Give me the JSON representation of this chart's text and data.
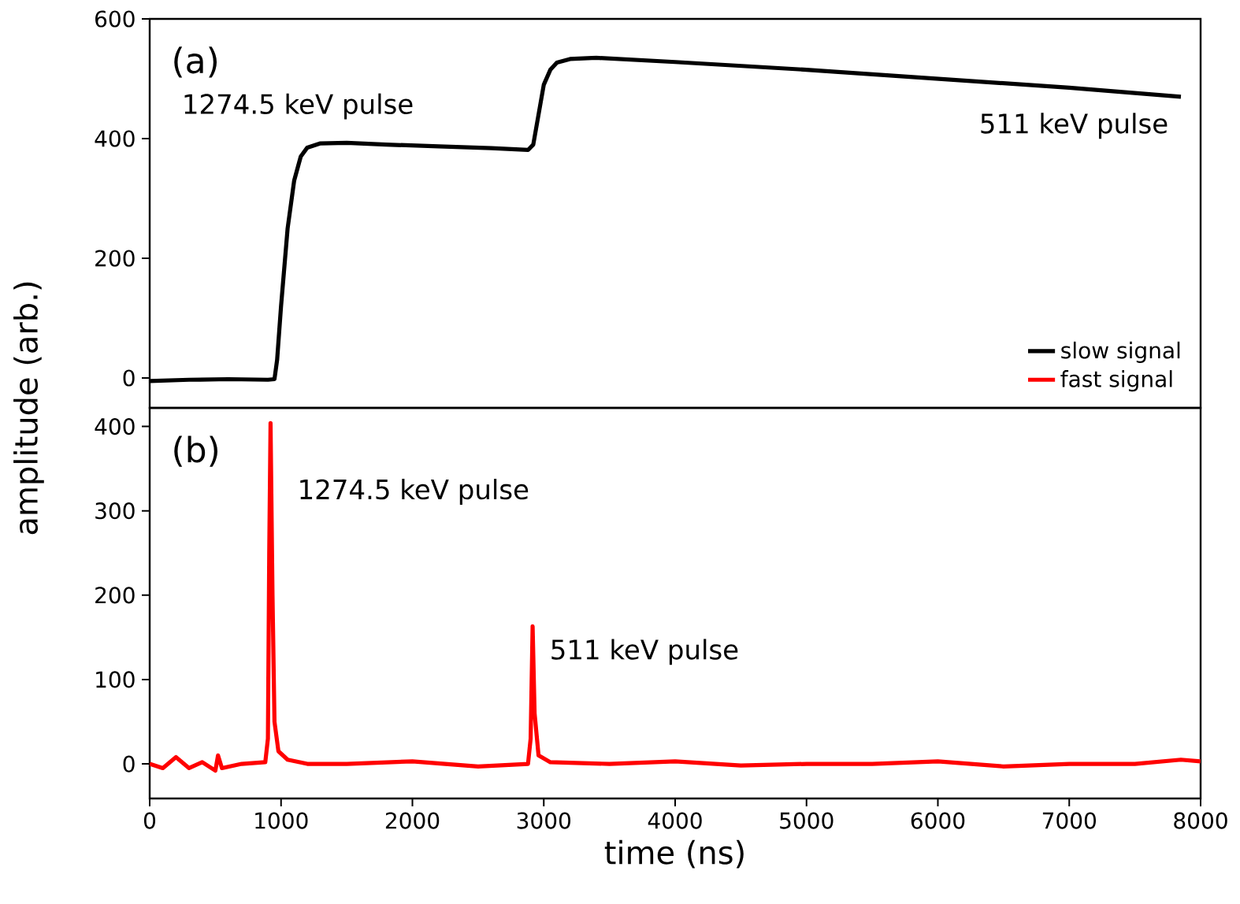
{
  "chart_data": [
    {
      "type": "line",
      "ylabel": "amplitude (arb.)",
      "xlim": [
        0,
        8000
      ],
      "ylim": [
        -50,
        600
      ],
      "yticks": [
        0,
        200,
        400,
        600
      ],
      "tick_labels": "y",
      "legend": "bottom right",
      "grid": false,
      "marker": "none",
      "line_style": "solid",
      "annotations": [
        "(a)",
        "1274.5 keV pulse",
        "511 keV pulse"
      ],
      "series": [
        {
          "name": "slow signal",
          "color": "#000000",
          "x": [
            0,
            300,
            600,
            900,
            950,
            970,
            1000,
            1050,
            1100,
            1150,
            1200,
            1300,
            1500,
            1800,
            2200,
            2600,
            2880,
            2920,
            2960,
            3000,
            3050,
            3100,
            3200,
            3400,
            4000,
            5000,
            6000,
            7000,
            7850
          ],
          "values": [
            -5,
            -3,
            -2,
            -3,
            -2,
            30,
            120,
            250,
            330,
            370,
            385,
            392,
            393,
            390,
            387,
            384,
            381,
            390,
            440,
            490,
            515,
            527,
            533,
            535,
            528,
            515,
            500,
            485,
            470
          ]
        }
      ]
    },
    {
      "type": "line",
      "xlabel": "time (ns)",
      "xlim": [
        0,
        8000
      ],
      "xticks": [
        0,
        1000,
        2000,
        3000,
        4000,
        5000,
        6000,
        7000,
        8000
      ],
      "ylim": [
        -41,
        422
      ],
      "yticks": [
        0,
        100,
        200,
        300,
        400
      ],
      "grid": false,
      "marker": "none",
      "line_style": "solid",
      "annotations": [
        "(b)",
        "1274.5 keV pulse",
        "511 keV pulse"
      ],
      "series": [
        {
          "name": "fast signal",
          "color": "#ff0000",
          "x": [
            0,
            100,
            200,
            300,
            400,
            500,
            520,
            550,
            700,
            880,
            900,
            910,
            920,
            935,
            950,
            980,
            1050,
            1200,
            1500,
            2000,
            2500,
            2880,
            2900,
            2915,
            2930,
            2960,
            3050,
            3500,
            4000,
            4500,
            5000,
            5500,
            6000,
            6500,
            7000,
            7500,
            7850,
            8000
          ],
          "values": [
            0,
            -5,
            8,
            -5,
            2,
            -8,
            10,
            -5,
            0,
            2,
            30,
            250,
            404,
            200,
            50,
            15,
            5,
            0,
            0,
            3,
            -3,
            0,
            30,
            163,
            60,
            10,
            2,
            0,
            3,
            -2,
            0,
            0,
            3,
            -3,
            0,
            0,
            5,
            3
          ]
        }
      ]
    }
  ]
}
